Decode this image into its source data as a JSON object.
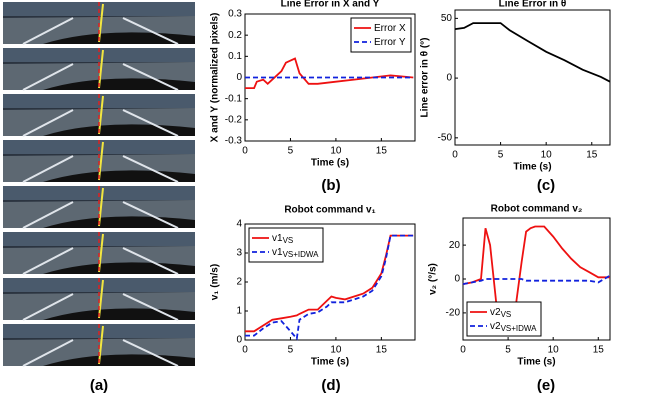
{
  "image_panel": {
    "label": "(a)"
  },
  "chart_data": [
    {
      "type": "line",
      "title": "Line Error in X and Y",
      "panel_label": "(b)",
      "xlabel": "Time (s)",
      "ylabel": "X and Y (normalized pixels)",
      "xlim": [
        0,
        18.7
      ],
      "xticks": [
        0,
        5,
        10,
        15
      ],
      "ylim": [
        -0.3,
        0.3
      ],
      "yticks": [
        -0.3,
        -0.2,
        -0.1,
        0,
        0.1,
        0.2,
        0.3
      ],
      "legend": "upper right",
      "x": [
        0,
        1,
        1.3,
        2,
        2.5,
        3,
        4,
        4.5,
        5,
        5.5,
        6,
        7,
        8,
        10,
        12,
        14,
        16,
        18.5
      ],
      "series": [
        {
          "name": "Error X",
          "color": "#ee1111",
          "dash": false,
          "values": [
            -0.05,
            -0.05,
            -0.02,
            -0.01,
            -0.03,
            -0.01,
            0.03,
            0.07,
            0.08,
            0.09,
            0.02,
            -0.03,
            -0.03,
            -0.02,
            -0.01,
            0,
            0.01,
            0
          ]
        },
        {
          "name": "Error Y",
          "color": "#1122dd",
          "dash": true,
          "values": [
            0,
            0,
            0,
            0,
            0,
            0,
            0,
            0,
            0,
            0,
            0,
            0,
            0,
            0,
            0,
            0,
            0,
            0
          ]
        }
      ]
    },
    {
      "type": "line",
      "title": "Line Error in θ",
      "panel_label": "(c)",
      "xlabel": "Time (s)",
      "ylabel": "Line error in θ (°)",
      "xlim": [
        0,
        17
      ],
      "xticks": [
        0,
        5,
        10,
        15
      ],
      "ylim": [
        -56,
        57
      ],
      "yticks": [
        -50,
        0,
        50
      ],
      "x": [
        0,
        1,
        2,
        3,
        4,
        5,
        6,
        8,
        10,
        12,
        14,
        16,
        17
      ],
      "series": [
        {
          "name": "Line error",
          "color": "#000000",
          "dash": false,
          "values": [
            41,
            42,
            46,
            46,
            46,
            46,
            40,
            31,
            22,
            15,
            7,
            1,
            -3
          ]
        }
      ]
    },
    {
      "type": "line",
      "title": "Robot command v₁",
      "panel_label": "(d)",
      "xlabel": "Time (s)",
      "ylabel": "v₁ (m/s)",
      "xlim": [
        0,
        18.7
      ],
      "xticks": [
        0,
        5,
        10,
        15
      ],
      "ylim": [
        0,
        4
      ],
      "yticks": [
        0,
        1,
        2,
        3,
        4
      ],
      "legend": "upper left",
      "x": [
        0,
        1,
        2,
        3,
        4,
        5,
        5.7,
        6,
        7,
        8,
        9,
        9.5,
        10,
        11,
        12,
        13,
        14,
        15,
        15.5,
        16,
        17,
        18.5
      ],
      "series": [
        {
          "name": "v1",
          "name_sub": "VS",
          "color": "#ee1111",
          "dash": false,
          "values": [
            0.3,
            0.3,
            0.5,
            0.7,
            0.75,
            0.8,
            0.85,
            0.9,
            1.05,
            1.05,
            1.35,
            1.5,
            1.45,
            1.4,
            1.5,
            1.6,
            1.8,
            2.3,
            2.9,
            3.6,
            3.6,
            3.6
          ]
        },
        {
          "name": "v1",
          "name_sub": "VS+IDWA",
          "color": "#1122dd",
          "dash": true,
          "values": [
            0.15,
            0.15,
            0.4,
            0.6,
            0.65,
            0.3,
            0.05,
            0.7,
            0.9,
            0.95,
            1.15,
            1.3,
            1.3,
            1.3,
            1.4,
            1.5,
            1.7,
            2.2,
            2.8,
            3.6,
            3.6,
            3.6
          ]
        }
      ]
    },
    {
      "type": "line",
      "title": "Robot command v₂",
      "panel_label": "(e)",
      "xlabel": "Time (s)",
      "ylabel": "v₂ (°/s)",
      "xlim": [
        0,
        16.3
      ],
      "xticks": [
        0,
        5,
        10,
        15
      ],
      "ylim": [
        -36,
        36
      ],
      "yticks": [
        -20,
        0,
        20
      ],
      "legend": "lower left",
      "x": [
        0,
        1,
        2,
        2.5,
        3,
        4,
        5,
        5.5,
        6,
        6.5,
        7,
        7.5,
        8,
        9,
        10,
        11,
        12,
        13,
        14,
        15,
        16.3
      ],
      "series": [
        {
          "name": "v2",
          "name_sub": "VS",
          "color": "#ee1111",
          "dash": false,
          "values": [
            -3,
            -2,
            0,
            30,
            20,
            -30,
            -30,
            -30,
            -10,
            10,
            28,
            30,
            31,
            31,
            25,
            18,
            12,
            7,
            4,
            1,
            1
          ]
        },
        {
          "name": "v2",
          "name_sub": "VS+IDWA",
          "color": "#1122dd",
          "dash": true,
          "values": [
            -3,
            -2,
            -1,
            0,
            0,
            0,
            0,
            0,
            0,
            0,
            -1,
            -1,
            -1,
            -1,
            -1,
            -1,
            -1,
            -1,
            -1,
            -2,
            2
          ]
        }
      ]
    }
  ]
}
